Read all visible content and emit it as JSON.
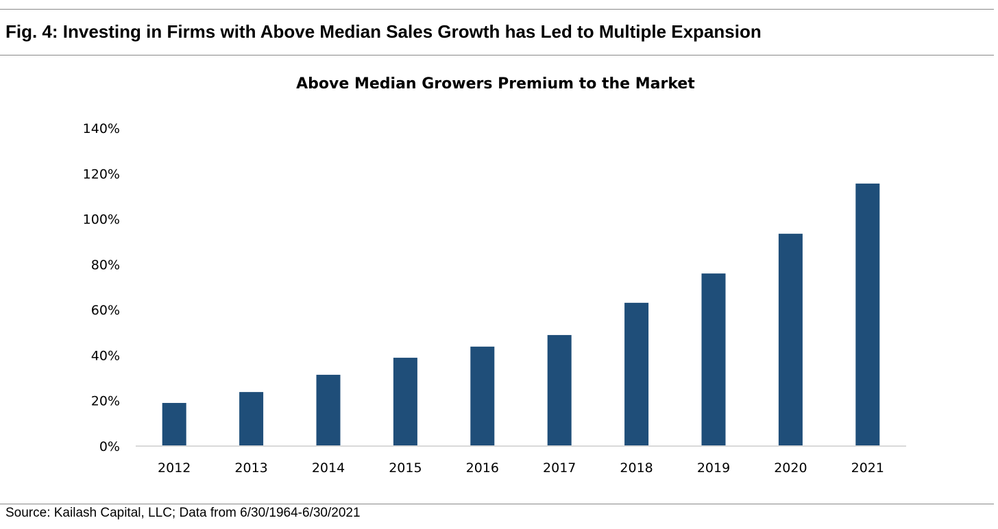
{
  "figure_title": "Fig. 4:  Investing in Firms with Above Median Sales Growth has Led to Multiple Expansion",
  "source": "Source: Kailash Capital, LLC; Data from 6/30/1964-6/30/2021",
  "chart_data": {
    "type": "bar",
    "title": "Above Median Growers Premium to the Market",
    "xlabel": "",
    "ylabel": "",
    "categories": [
      "2012",
      "2013",
      "2014",
      "2015",
      "2016",
      "2017",
      "2018",
      "2019",
      "2020",
      "2021"
    ],
    "values": [
      19.0,
      23.8,
      31.4,
      38.9,
      43.8,
      48.9,
      63.1,
      76.0,
      93.5,
      115.6
    ],
    "unit": "%",
    "ylim": [
      0,
      140
    ],
    "yticks": [
      "0%",
      "20%",
      "40%",
      "60%",
      "80%",
      "100%",
      "120%",
      "140%"
    ],
    "grid": false,
    "legend": "none",
    "bar_color": "#1F4E79",
    "axis_color": "#D9D9D9"
  }
}
